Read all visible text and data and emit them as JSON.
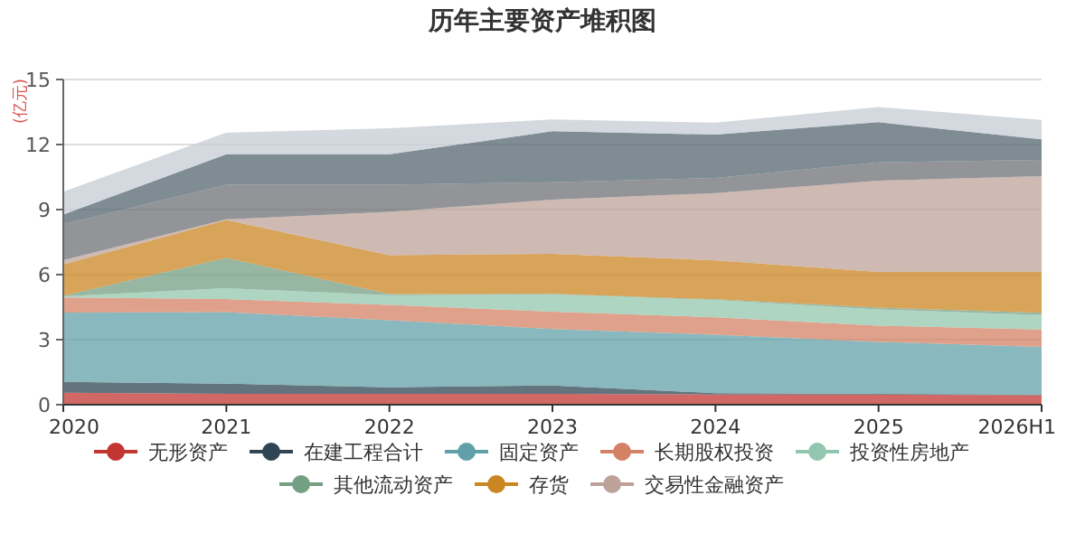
{
  "chart_data": {
    "type": "area",
    "stacked": true,
    "title": "历年主要资产堆积图",
    "ylabel": "(亿元)",
    "categories": [
      "2020",
      "2021",
      "2022",
      "2023",
      "2024",
      "2025",
      "2026H1"
    ],
    "ylim": [
      0,
      15
    ],
    "yticks": [
      0,
      3,
      6,
      9,
      12,
      15
    ],
    "grid": "y",
    "legend": "bottom",
    "series": [
      {
        "name": "无形资产",
        "color": "#c23531",
        "values": [
          0.55,
          0.5,
          0.5,
          0.5,
          0.47,
          0.47,
          0.44
        ]
      },
      {
        "name": "在建工程合计",
        "color": "#2f4554",
        "values": [
          0.5,
          0.47,
          0.3,
          0.39,
          0.06,
          0.03,
          0.03
        ]
      },
      {
        "name": "固定资产",
        "color": "#61a0a8",
        "values": [
          3.2,
          3.3,
          3.1,
          2.6,
          2.7,
          2.4,
          2.2
        ]
      },
      {
        "name": "长期股权投资",
        "color": "#d48265",
        "values": [
          0.7,
          0.6,
          0.7,
          0.8,
          0.8,
          0.75,
          0.8
        ]
      },
      {
        "name": "投资性房地产",
        "color": "#91c7ae",
        "values": [
          0.05,
          0.5,
          0.45,
          0.8,
          0.8,
          0.75,
          0.67
        ]
      },
      {
        "name": "其他流动资产",
        "color": "#749f83",
        "values": [
          0.02,
          1.4,
          0.05,
          0.02,
          0.03,
          0.08,
          0.1
        ]
      },
      {
        "name": "存货",
        "color": "#ca8622",
        "values": [
          1.45,
          1.75,
          1.8,
          1.85,
          1.8,
          1.65,
          1.9
        ]
      },
      {
        "name": "交易性金融资产",
        "color": "#bda29a",
        "values": [
          0.2,
          0.03,
          2.0,
          2.5,
          3.1,
          4.2,
          4.4
        ]
      },
      {
        "color": "#6e7074",
        "values": [
          1.65,
          1.6,
          1.25,
          0.8,
          0.7,
          0.85,
          0.75
        ]
      },
      {
        "color": "#546570",
        "values": [
          0.45,
          1.4,
          1.4,
          2.35,
          2.0,
          1.85,
          0.95
        ]
      },
      {
        "color": "#c4ccd3",
        "values": [
          1.05,
          1.0,
          1.2,
          0.55,
          0.55,
          0.7,
          0.9
        ]
      }
    ]
  }
}
